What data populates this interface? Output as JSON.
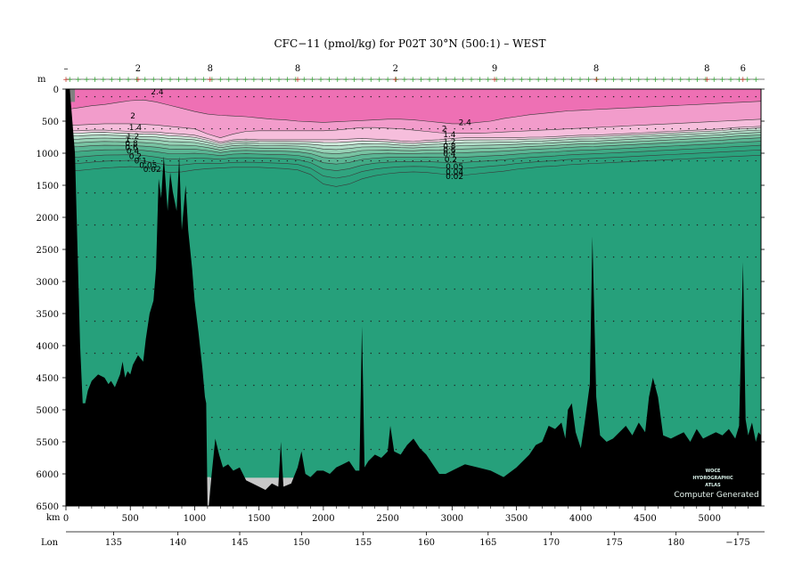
{
  "chart_data": {
    "type": "area",
    "title": "CFC−11 (pmol/kg) for P02T 30°N (500:1) – WEST",
    "y_axis_unit": "m",
    "x_axis_unit": "km",
    "lon_axis_label": "Lon",
    "xlim": [
      0,
      5400
    ],
    "ylim": [
      0,
      6500
    ],
    "y_ticks": [
      0,
      500,
      1000,
      1500,
      2000,
      2500,
      3000,
      3500,
      4000,
      4500,
      5000,
      5500,
      6000,
      6500
    ],
    "x_ticks": [
      0,
      500,
      1000,
      1500,
      2000,
      2500,
      3000,
      3500,
      4000,
      4500,
      5000
    ],
    "lon_ticks": [
      {
        "km": 370,
        "label": "135"
      },
      {
        "km": 870,
        "label": "140"
      },
      {
        "km": 1350,
        "label": "145"
      },
      {
        "km": 1830,
        "label": "150"
      },
      {
        "km": 2310,
        "label": "155"
      },
      {
        "km": 2800,
        "label": "160"
      },
      {
        "km": 3280,
        "label": "165"
      },
      {
        "km": 3770,
        "label": "170"
      },
      {
        "km": 4260,
        "label": "175"
      },
      {
        "km": 4740,
        "label": "180"
      },
      {
        "km": 5220,
        "label": "−175"
      }
    ],
    "station_markers_top": [
      {
        "km": 0,
        "label": "–"
      },
      {
        "km": 560,
        "label": "2"
      },
      {
        "km": 1120,
        "label": "8"
      },
      {
        "km": 1800,
        "label": "8"
      },
      {
        "km": 2560,
        "label": "2"
      },
      {
        "km": 3330,
        "label": "9"
      },
      {
        "km": 4120,
        "label": "8"
      },
      {
        "km": 4980,
        "label": "8"
      },
      {
        "km": 5260,
        "label": "6"
      }
    ],
    "contour_levels": [
      2.4,
      2,
      1.4,
      1.2,
      1,
      0.8,
      0.6,
      0.4,
      0.2,
      0.1,
      0.05,
      0.04,
      0.02
    ],
    "contour_labels": [
      {
        "km": 660,
        "depth": 80,
        "text": "2.4"
      },
      {
        "km": 3050,
        "depth": 560,
        "text": "2.4"
      },
      {
        "km": 500,
        "depth": 460,
        "text": "2"
      },
      {
        "km": 2920,
        "depth": 660,
        "text": "2"
      },
      {
        "km": 490,
        "depth": 640,
        "text": "1.4"
      },
      {
        "km": 2930,
        "depth": 750,
        "text": "1.4"
      },
      {
        "km": 470,
        "depth": 780,
        "text": "1.2"
      },
      {
        "km": 2930,
        "depth": 860,
        "text": "1.2"
      },
      {
        "km": 460,
        "depth": 830,
        "text": "1"
      },
      {
        "km": 460,
        "depth": 890,
        "text": "0.8"
      },
      {
        "km": 2930,
        "depth": 930,
        "text": "0.8"
      },
      {
        "km": 460,
        "depth": 950,
        "text": "0.6"
      },
      {
        "km": 2930,
        "depth": 990,
        "text": "0.6"
      },
      {
        "km": 470,
        "depth": 1010,
        "text": "0.4"
      },
      {
        "km": 2930,
        "depth": 1050,
        "text": "0.4"
      },
      {
        "km": 490,
        "depth": 1090,
        "text": "0.2"
      },
      {
        "km": 2940,
        "depth": 1140,
        "text": "0.2"
      },
      {
        "km": 530,
        "depth": 1160,
        "text": "0.1"
      },
      {
        "km": 2950,
        "depth": 1250,
        "text": "0.05"
      },
      {
        "km": 570,
        "depth": 1230,
        "text": "0.05"
      },
      {
        "km": 2950,
        "depth": 1330,
        "text": "0.04"
      },
      {
        "km": 600,
        "depth": 1290,
        "text": "0.02"
      },
      {
        "km": 2950,
        "depth": 1400,
        "text": "0.02"
      }
    ],
    "layer_colors": {
      "ge_2_4": "#ee70b4",
      "ge_2": "#f29ccb",
      "ge_1_4": "#f6bedc",
      "ge_1_2": "#f8d6e8",
      "ge_1": "#cfeadb",
      "ge_0_8": "#b3dec9",
      "ge_0_6": "#96d1b5",
      "ge_0_4": "#78c3a2",
      "ge_0_2": "#5ab593",
      "ge_0_1": "#40aa85",
      "below": "#26a07b",
      "bathymetry": "#000000",
      "nodata": "#c8c8c8"
    },
    "watermark_lines": [
      "WOCE",
      "HYDROGRAPHIC",
      "ATLAS"
    ],
    "footer_text": "Computer Generated"
  }
}
